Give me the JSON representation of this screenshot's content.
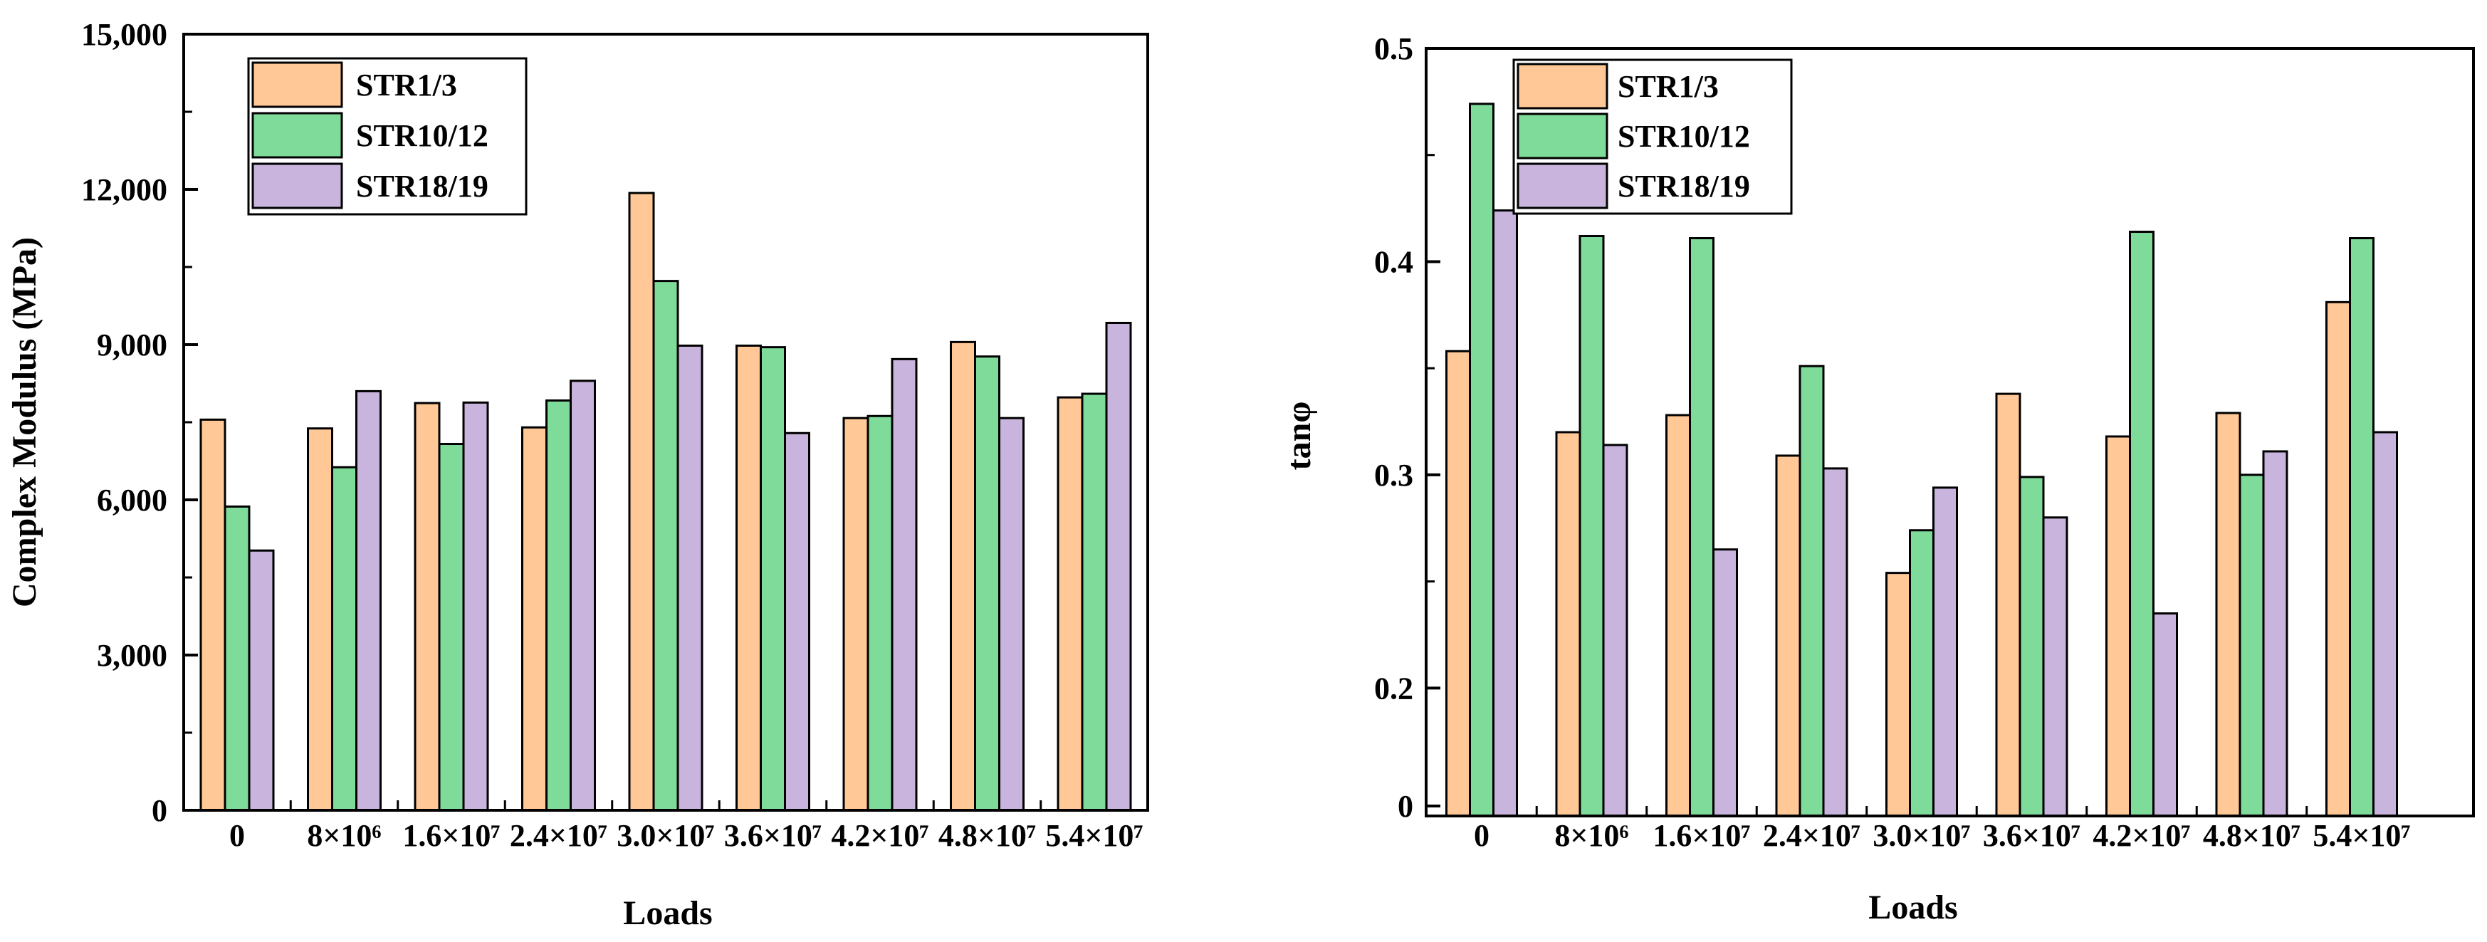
{
  "chart_data": [
    {
      "type": "bar",
      "xlabel": "Loads",
      "ylabel": "Complex Modulus (MPa)",
      "categories": [
        "0",
        "8×10⁶",
        "1.6×10⁷",
        "2.4×10⁷",
        "3.0×10⁷",
        "3.6×10⁷",
        "4.2×10⁷",
        "4.8×10⁷",
        "5.4×10⁷"
      ],
      "ylim": [
        0,
        15000
      ],
      "yticks": [
        0,
        3000,
        6000,
        9000,
        12000,
        15000
      ],
      "ytick_labels": [
        "0",
        "3,000",
        "6,000",
        "9,000",
        "12,000",
        "15,000"
      ],
      "legend_position": "top-left",
      "series": [
        {
          "name": "STR1/3",
          "color": "#FFC896",
          "values": [
            7550,
            7380,
            7870,
            7400,
            11930,
            8980,
            7580,
            9050,
            7980
          ]
        },
        {
          "name": "STR10/12",
          "color": "#7FDB9A",
          "values": [
            5870,
            6630,
            7080,
            7920,
            10230,
            8950,
            7620,
            8770,
            8050
          ]
        },
        {
          "name": "STR18/19",
          "color": "#C8B4DC",
          "values": [
            5020,
            8100,
            7880,
            8300,
            8980,
            7290,
            8720,
            7580,
            9420
          ]
        }
      ]
    },
    {
      "type": "bar",
      "xlabel": "Loads",
      "ylabel": "tanφ",
      "categories": [
        "0",
        "8×10⁶",
        "1.6×10⁷",
        "2.4×10⁷",
        "3.0×10⁷",
        "3.6×10⁷",
        "4.2×10⁷",
        "4.8×10⁷",
        "5.4×10⁷"
      ],
      "ylim": [
        0,
        0.5
      ],
      "yticks": [
        0,
        0.2,
        0.3,
        0.4,
        0.5
      ],
      "ytick_labels": [
        "0",
        "0.2",
        "0.3",
        "0.4",
        "0.5"
      ],
      "legend_position": "top-left",
      "series": [
        {
          "name": "STR1/3",
          "color": "#FFC896",
          "values": [
            0.358,
            0.32,
            0.328,
            0.309,
            0.254,
            0.338,
            0.318,
            0.329,
            0.381
          ]
        },
        {
          "name": "STR10/12",
          "color": "#7FDB9A",
          "values": [
            0.474,
            0.412,
            0.411,
            0.351,
            0.274,
            0.299,
            0.414,
            0.3,
            0.411
          ]
        },
        {
          "name": "STR18/19",
          "color": "#C8B4DC",
          "values": [
            0.424,
            0.314,
            0.265,
            0.303,
            0.294,
            0.28,
            0.235,
            0.311,
            0.32
          ]
        }
      ]
    }
  ]
}
